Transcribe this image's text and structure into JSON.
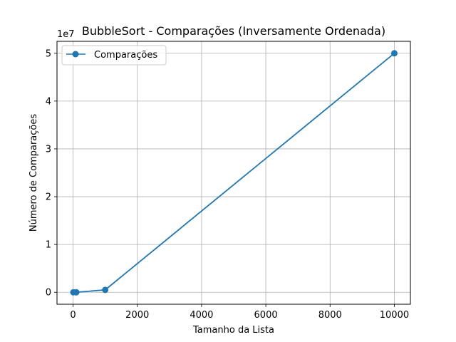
{
  "chart_data": {
    "type": "line",
    "title": "BubbleSort - Comparações (Inversamente Ordenada)",
    "xlabel": "Tamanho da Lista",
    "ylabel": "Número de Comparações",
    "y_offset_text": "1e7",
    "y_scale_factor": 10000000,
    "xlim": [
      -500,
      10500
    ],
    "ylim": [
      -2500000,
      52500000
    ],
    "x_ticks": [
      0,
      2000,
      4000,
      6000,
      8000,
      10000
    ],
    "y_ticks": [
      0,
      10000000,
      20000000,
      30000000,
      40000000,
      50000000
    ],
    "y_tick_labels": [
      "0",
      "1",
      "2",
      "3",
      "4",
      "5"
    ],
    "grid": true,
    "legend_position": "top-left",
    "series": [
      {
        "name": "Comparações",
        "color": "#1f77b4",
        "marker": "circle",
        "x": [
          10,
          100,
          1000,
          10000
        ],
        "y": [
          45,
          4950,
          499500,
          49995000
        ]
      }
    ]
  }
}
